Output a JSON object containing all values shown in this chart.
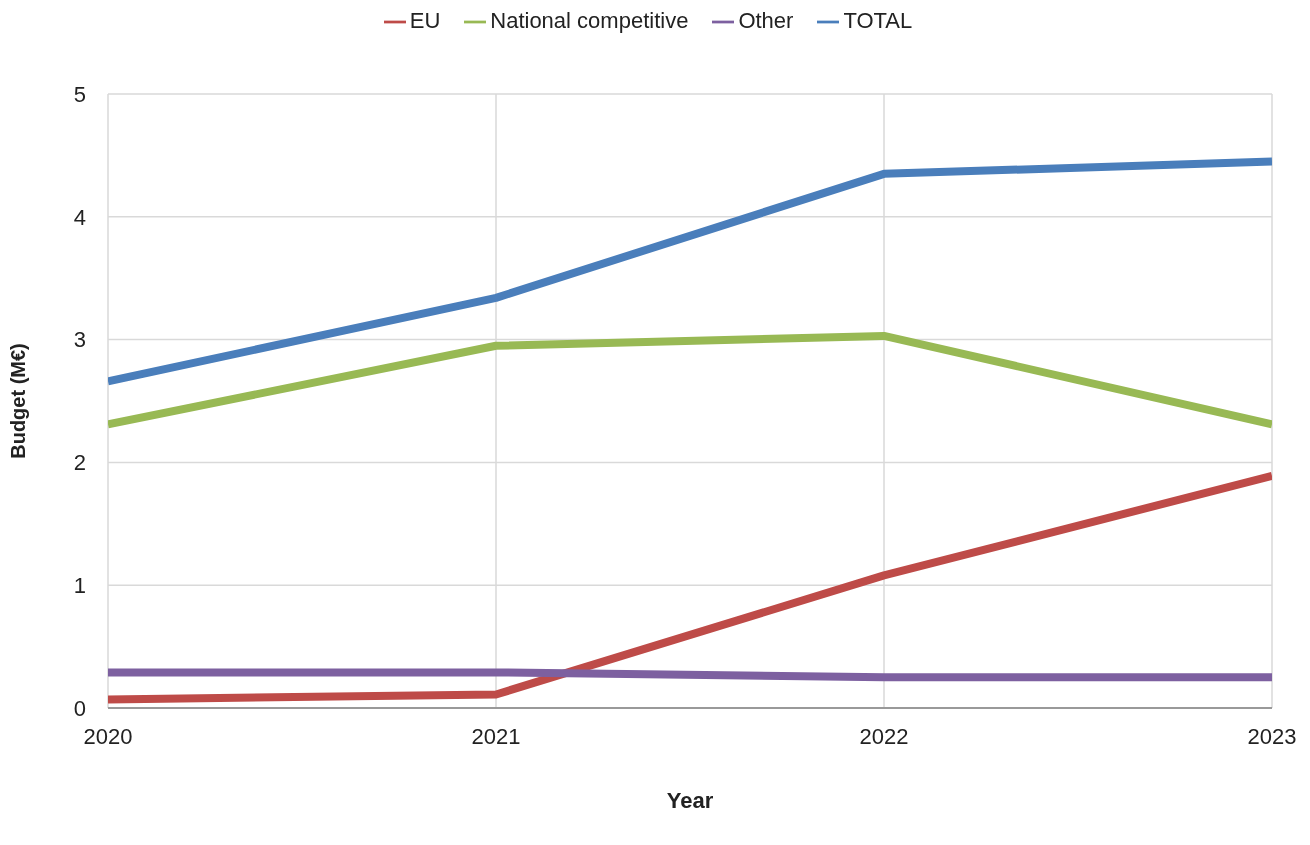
{
  "chart_data": {
    "type": "line",
    "xlabel": "Year",
    "ylabel": "Budget (M€)",
    "x": [
      2020,
      2021,
      2022,
      2023
    ],
    "series": [
      {
        "name": "TOTAL",
        "color": "#4a7ebb",
        "values": [
          2.66,
          3.34,
          4.35,
          4.45
        ]
      },
      {
        "name": "EU",
        "color": "#be4b48",
        "values": [
          0.07,
          0.11,
          1.08,
          1.89
        ]
      },
      {
        "name": "National competitive",
        "color": "#98b954",
        "values": [
          2.31,
          2.95,
          3.03,
          2.31
        ]
      },
      {
        "name": "Other",
        "color": "#7d60a0",
        "values": [
          0.29,
          0.29,
          0.25,
          0.25
        ]
      }
    ],
    "xlim": [
      2020,
      2023
    ],
    "xticks": [
      2020,
      2021,
      2022,
      2023
    ],
    "ylim": [
      0,
      5
    ],
    "yticks": [
      0,
      1,
      2,
      3,
      4,
      5
    ],
    "grid": true,
    "legend": "top",
    "marker": "none",
    "line_style": "solid"
  }
}
